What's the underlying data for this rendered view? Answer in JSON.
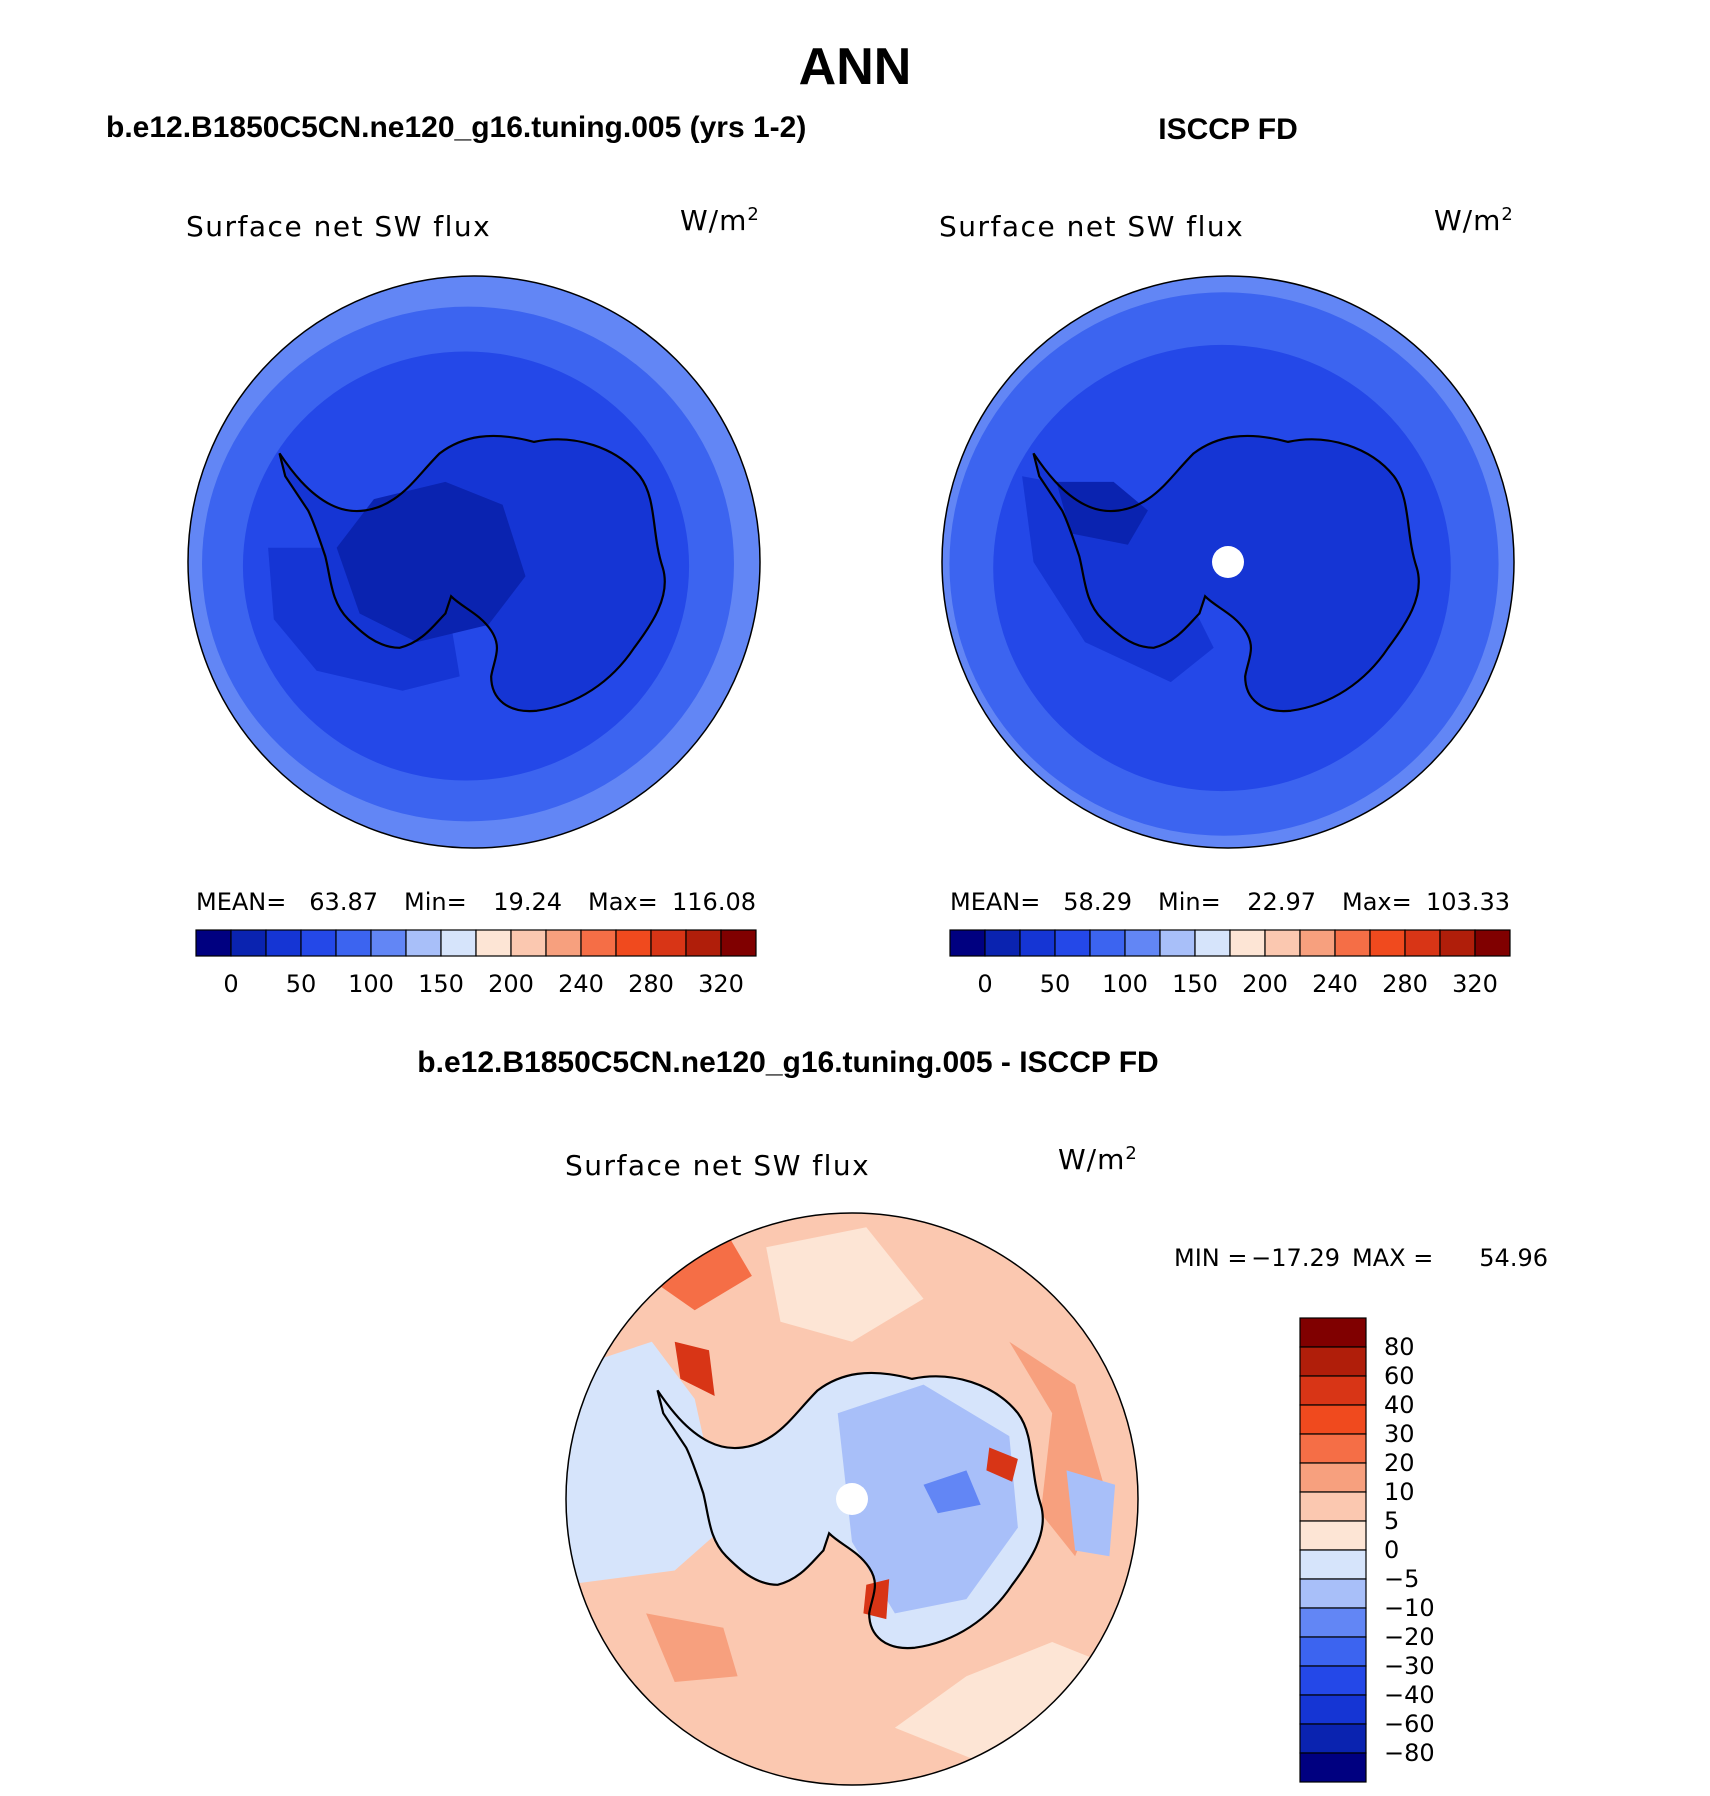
{
  "figure": {
    "season": "ANN",
    "title_left": "b.e12.B1850C5CN.ne120_g16.tuning.005 (yrs 1-2)",
    "title_right": "ISCCP FD",
    "title_diff": "b.e12.B1850C5CN.ne120_g16.tuning.005 - ISCCP FD"
  },
  "panels": {
    "model": {
      "variable": "Surface net SW flux",
      "units": "W/m",
      "units_sup": "2",
      "stats": {
        "mean_label": "MEAN=",
        "mean": "63.87",
        "min_label": "Min=",
        "min": "19.24",
        "max_label": "Max=",
        "max": "116.08"
      }
    },
    "obs": {
      "variable": "Surface net SW flux",
      "units": "W/m",
      "units_sup": "2",
      "stats": {
        "mean_label": "MEAN=",
        "mean": "58.29",
        "min_label": "Min=",
        "min": "22.97",
        "max_label": "Max=",
        "max": "103.33"
      }
    },
    "diff": {
      "variable": "Surface net SW flux",
      "units": "W/m",
      "units_sup": "2",
      "stats": {
        "min_label": "MIN =",
        "min": "−17.29",
        "max_label": "MAX =",
        "max": "54.96"
      }
    }
  },
  "colorbar_abs": {
    "colors": [
      "#000080",
      "#0a23b0",
      "#1535d4",
      "#2448e8",
      "#3c64f0",
      "#6286f5",
      "#a8bff9",
      "#d6e4fb",
      "#fde5d5",
      "#fbc8b0",
      "#f7a07e",
      "#f56e46",
      "#f04a1e",
      "#d83516",
      "#b01e0a",
      "#800000"
    ],
    "labels": [
      "0",
      "50",
      "100",
      "150",
      "200",
      "240",
      "280",
      "320"
    ]
  },
  "colorbar_diff": {
    "colors": [
      "#800000",
      "#b01e0a",
      "#d83516",
      "#f04a1e",
      "#f56e46",
      "#f7a07e",
      "#fbc8b0",
      "#fde5d5",
      "#d6e4fb",
      "#a8bff9",
      "#6286f5",
      "#3c64f0",
      "#2448e8",
      "#1535d4",
      "#0a23b0",
      "#000080"
    ],
    "labels": [
      "80",
      "60",
      "40",
      "30",
      "20",
      "10",
      "5",
      "0",
      "−5",
      "−10",
      "−20",
      "−30",
      "−40",
      "−60",
      "−80"
    ]
  },
  "map_colors": {
    "ocean_outer": "#6286f5",
    "ocean_mid": "#3c64f0",
    "ocean_inner": "#2448e8",
    "coastal": "#1535d4",
    "land_model": "#1535d4",
    "land_model_high": "#0a23b0",
    "land_obs": "#1535d4",
    "pole_gap": "#ffffff",
    "diff_warm_light": "#fde5d5",
    "diff_warm": "#fbc8b0",
    "diff_warm_mid": "#f7a07e",
    "diff_warm_strong": "#f56e46",
    "diff_hot": "#d83516",
    "diff_cool_light": "#d6e4fb",
    "diff_cool": "#a8bff9",
    "diff_cool_mid": "#6286f5"
  }
}
